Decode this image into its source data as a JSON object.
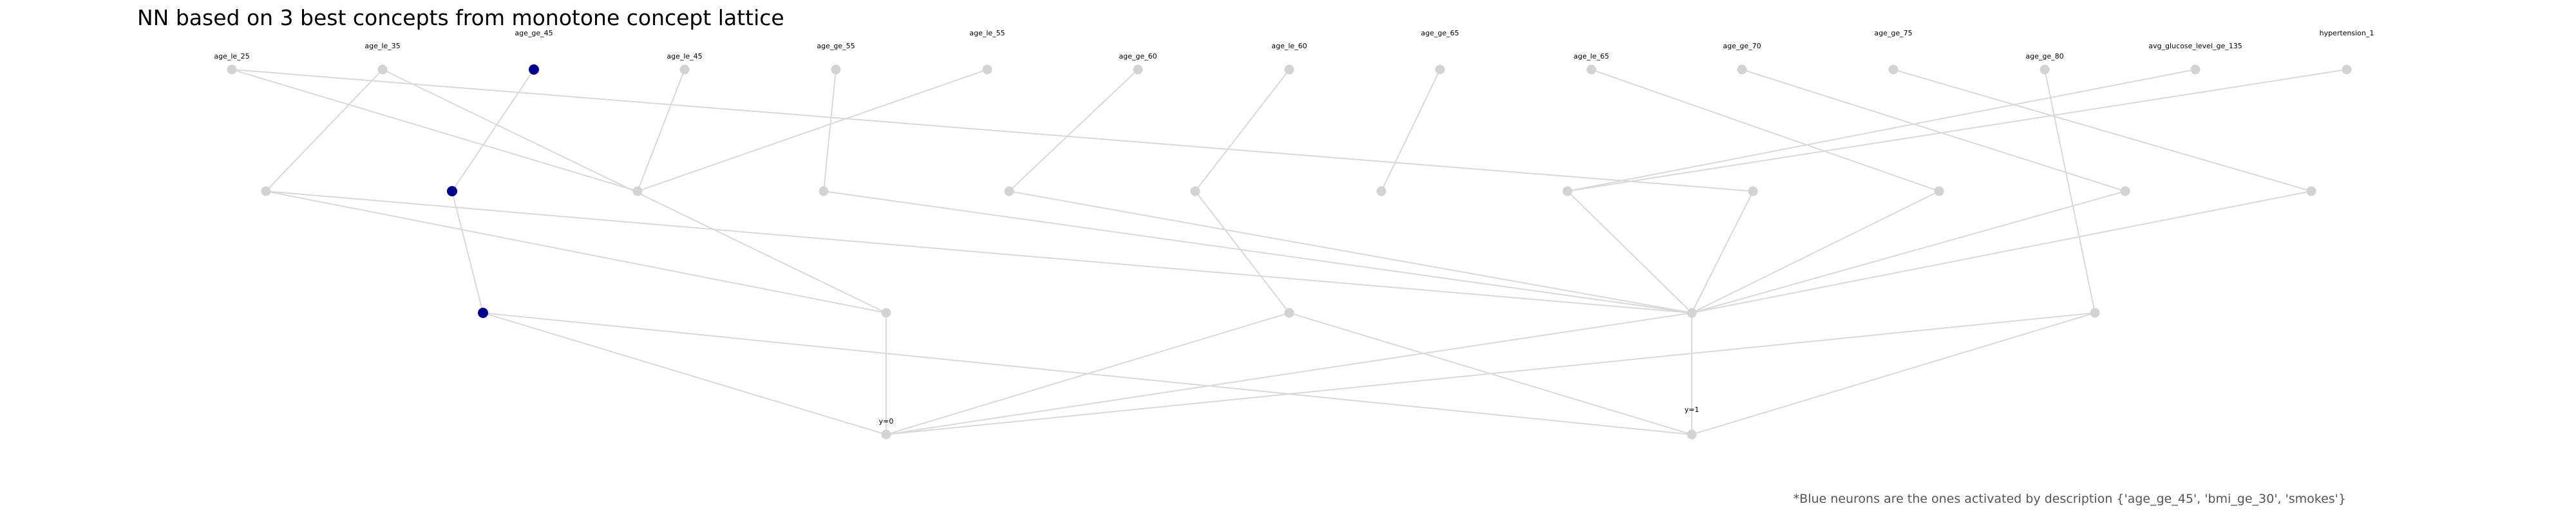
{
  "title": "NN based on 3 best concepts from monotone concept lattice",
  "footnote": "*Blue neurons are the ones activated by description {'age_ge_45', 'bmi_ge_30', 'smokes'}",
  "colors": {
    "active": "#00008b",
    "inactive": "#d3d3d3",
    "edge": "#d9d9d9"
  },
  "layers": [
    [
      {
        "id": "i0",
        "label": "age_le_25",
        "active": false
      },
      {
        "id": "i1",
        "label": "age_le_35",
        "active": false
      },
      {
        "id": "i2",
        "label": "age_ge_45",
        "active": true
      },
      {
        "id": "i3",
        "label": "age_le_45",
        "active": false
      },
      {
        "id": "i4",
        "label": "age_ge_55",
        "active": false
      },
      {
        "id": "i5",
        "label": "age_le_55",
        "active": false
      },
      {
        "id": "i6",
        "label": "age_ge_60",
        "active": false
      },
      {
        "id": "i7",
        "label": "age_le_60",
        "active": false
      },
      {
        "id": "i8",
        "label": "age_ge_65",
        "active": false
      },
      {
        "id": "i9",
        "label": "age_le_65",
        "active": false
      },
      {
        "id": "i10",
        "label": "age_ge_70",
        "active": false
      },
      {
        "id": "i11",
        "label": "age_ge_75",
        "active": false
      },
      {
        "id": "i12",
        "label": "age_ge_80",
        "active": false
      },
      {
        "id": "i13",
        "label": "avg_glucose_level_ge_135",
        "active": false
      },
      {
        "id": "i14",
        "label": "hypertension_1",
        "active": false
      }
    ],
    [
      {
        "id": "h1_0",
        "label": "",
        "active": false
      },
      {
        "id": "h1_1",
        "label": "",
        "active": true
      },
      {
        "id": "h1_2",
        "label": "",
        "active": false
      },
      {
        "id": "h1_3",
        "label": "",
        "active": false
      },
      {
        "id": "h1_4",
        "label": "",
        "active": false
      },
      {
        "id": "h1_5",
        "label": "",
        "active": false
      },
      {
        "id": "h1_6",
        "label": "",
        "active": false
      },
      {
        "id": "h1_7",
        "label": "",
        "active": false
      },
      {
        "id": "h1_8",
        "label": "",
        "active": false
      },
      {
        "id": "h1_9",
        "label": "",
        "active": false
      },
      {
        "id": "h1_10",
        "label": "",
        "active": false
      },
      {
        "id": "h1_11",
        "label": "",
        "active": false
      }
    ],
    [
      {
        "id": "h2_0",
        "label": "",
        "active": true
      },
      {
        "id": "h2_1",
        "label": "",
        "active": false
      },
      {
        "id": "h2_2",
        "label": "",
        "active": false
      },
      {
        "id": "h2_3",
        "label": "",
        "active": false
      },
      {
        "id": "h2_4",
        "label": "",
        "active": false
      }
    ],
    [
      {
        "id": "o0",
        "label": "y=0",
        "active": false
      },
      {
        "id": "o1",
        "label": "y=1",
        "active": false
      }
    ]
  ],
  "edges": [
    [
      "i0",
      "h1_2"
    ],
    [
      "i0",
      "h1_8"
    ],
    [
      "i1",
      "h1_0"
    ],
    [
      "i1",
      "h2_1"
    ],
    [
      "i2",
      "h1_1"
    ],
    [
      "i3",
      "h1_2"
    ],
    [
      "i4",
      "h1_3"
    ],
    [
      "i5",
      "h1_2"
    ],
    [
      "i6",
      "h1_4"
    ],
    [
      "i7",
      "h1_5"
    ],
    [
      "i8",
      "h1_6"
    ],
    [
      "i9",
      "h1_9"
    ],
    [
      "i10",
      "h1_10"
    ],
    [
      "i11",
      "h1_11"
    ],
    [
      "i12",
      "h2_4"
    ],
    [
      "i13",
      "h1_7"
    ],
    [
      "i14",
      "h1_7"
    ],
    [
      "h1_0",
      "h2_1"
    ],
    [
      "h1_0",
      "h2_3"
    ],
    [
      "h1_1",
      "h2_0"
    ],
    [
      "h1_3",
      "h2_3"
    ],
    [
      "h1_4",
      "h2_3"
    ],
    [
      "h1_5",
      "h2_2"
    ],
    [
      "h1_7",
      "h2_3"
    ],
    [
      "h1_8",
      "h2_3"
    ],
    [
      "h1_9",
      "h2_3"
    ],
    [
      "h1_10",
      "h2_3"
    ],
    [
      "h1_11",
      "h2_3"
    ],
    [
      "h2_0",
      "o0"
    ],
    [
      "h2_0",
      "o1"
    ],
    [
      "h2_1",
      "o0"
    ],
    [
      "h2_2",
      "o0"
    ],
    [
      "h2_2",
      "o1"
    ],
    [
      "h2_3",
      "o0"
    ],
    [
      "h2_3",
      "o1"
    ],
    [
      "h2_4",
      "o0"
    ],
    [
      "h2_4",
      "o1"
    ]
  ]
}
